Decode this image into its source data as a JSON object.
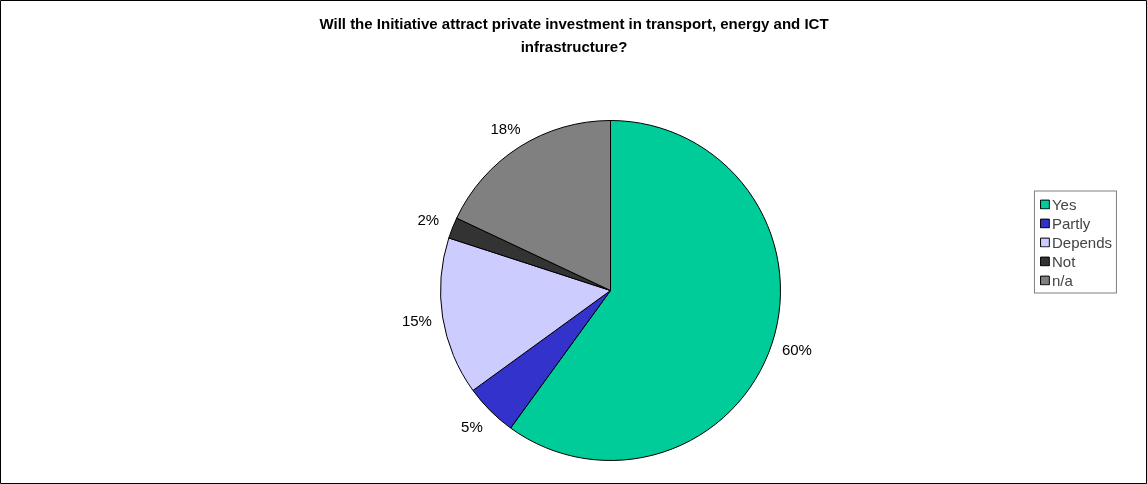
{
  "chart_data": {
    "type": "pie",
    "title": "Will the Initiative attract private investment in transport, energy and ICT infrastructure?",
    "categories": [
      "Yes",
      "Partly",
      "Depends",
      "Not",
      "n/a"
    ],
    "values": [
      60,
      5,
      15,
      2,
      18
    ],
    "colors": [
      "#00cc99",
      "#3333cc",
      "#ccccff",
      "#333333",
      "#808080"
    ],
    "value_labels": [
      "60%",
      "5%",
      "15%",
      "2%",
      "18%"
    ],
    "legend": "right"
  }
}
